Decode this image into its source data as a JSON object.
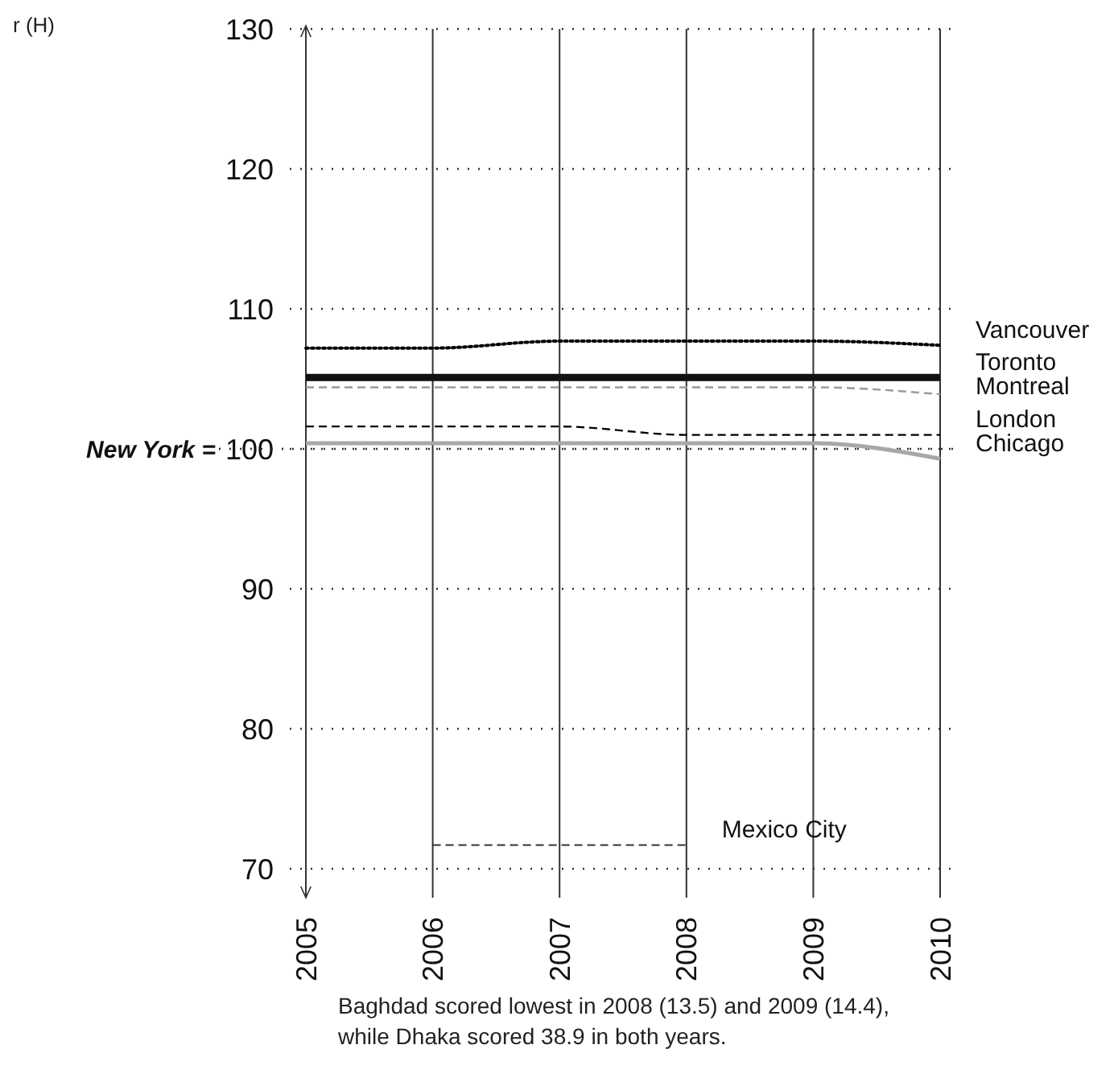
{
  "chart_data": {
    "type": "line",
    "xlim": [
      2005,
      2010
    ],
    "xticks": [
      2005,
      2006,
      2007,
      2008,
      2009,
      2010
    ],
    "ylim": [
      70,
      130
    ],
    "yticks": [
      70,
      80,
      90,
      100,
      110,
      120,
      130
    ],
    "grid": true,
    "marker": "none",
    "series": [
      {
        "name": "Vancouver",
        "color": "#000000",
        "line_style": "dotted",
        "x": [
          2005,
          2006,
          2007,
          2008,
          2009,
          2010
        ],
        "values": [
          107.2,
          107.2,
          107.7,
          107.7,
          107.7,
          107.4
        ]
      },
      {
        "name": "Toronto",
        "color": "#111111",
        "line_style": "solid",
        "x": [
          2005,
          2006,
          2007,
          2008,
          2009,
          2010
        ],
        "values": [
          105.1,
          105.1,
          105.1,
          105.1,
          105.1,
          105.1
        ]
      },
      {
        "name": "Montreal",
        "color": "#9a9a9a",
        "line_style": "dashed",
        "x": [
          2005,
          2006,
          2007,
          2008,
          2009,
          2010
        ],
        "values": [
          104.4,
          104.4,
          104.4,
          104.4,
          104.4,
          103.9
        ]
      },
      {
        "name": "London",
        "color": "#000000",
        "line_style": "dashed",
        "x": [
          2005,
          2006,
          2007,
          2008,
          2009,
          2010
        ],
        "values": [
          101.6,
          101.6,
          101.6,
          101.0,
          101.0,
          101.0
        ]
      },
      {
        "name": "Chicago",
        "color": "#a8a8a8",
        "line_style": "solid",
        "x": [
          2005,
          2006,
          2007,
          2008,
          2009,
          2010
        ],
        "values": [
          100.4,
          100.4,
          100.4,
          100.4,
          100.4,
          99.3
        ]
      },
      {
        "name": "Mexico City",
        "color": "#333333",
        "line_style": "dashed",
        "x": [
          2006,
          2007,
          2008
        ],
        "values": [
          71.7,
          71.7,
          71.7
        ]
      }
    ],
    "ref_lines": [
      {
        "axis": "y",
        "value": 100,
        "label": "New York ="
      }
    ],
    "annotations": [
      "r (H)",
      "Baghdad scored lowest in 2008 (13.5) and 2009 (14.4), while Dhaka scored 38.9 in both years."
    ]
  }
}
